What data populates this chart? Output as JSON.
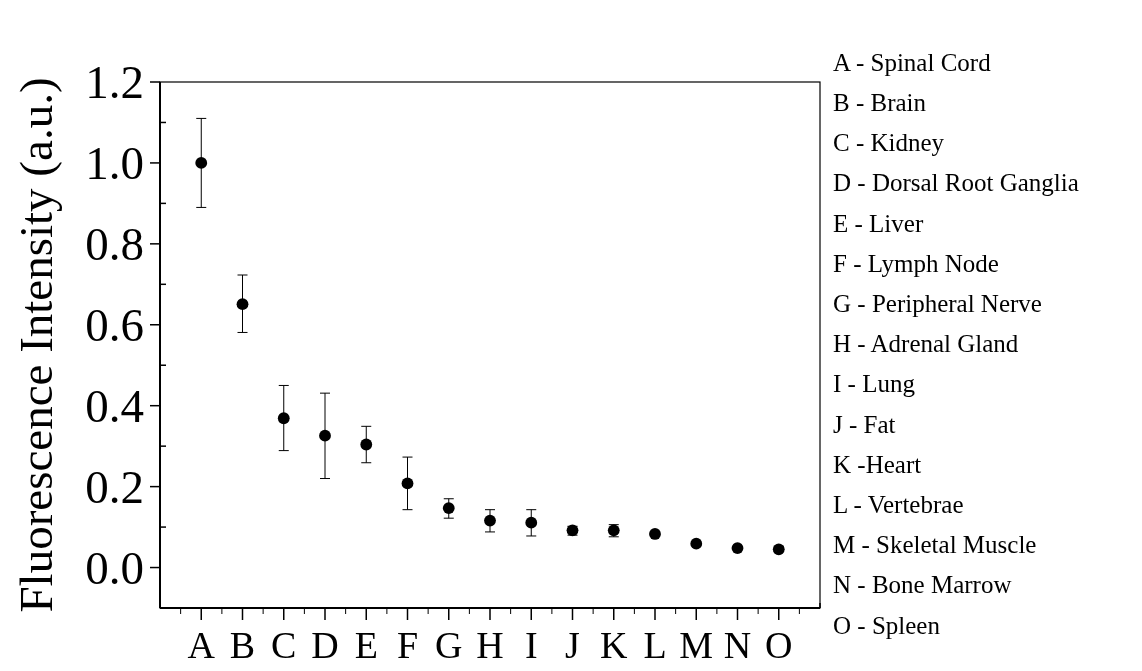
{
  "chart_data": {
    "type": "scatter",
    "ylabel": "Fluorescence Intensity (a.u.)",
    "categories": [
      "A",
      "B",
      "C",
      "D",
      "E",
      "F",
      "G",
      "H",
      "I",
      "J",
      "K",
      "L",
      "M",
      "N",
      "O"
    ],
    "values": [
      1.0,
      0.651,
      0.369,
      0.326,
      0.304,
      0.208,
      0.147,
      0.116,
      0.111,
      0.092,
      0.092,
      0.083,
      0.059,
      0.048,
      0.045
    ],
    "errors": [
      [
        0.89,
        1.11
      ],
      [
        0.581,
        0.723
      ],
      [
        0.289,
        0.45
      ],
      [
        0.22,
        0.431
      ],
      [
        0.259,
        0.349
      ],
      [
        0.143,
        0.273
      ],
      [
        0.122,
        0.17
      ],
      [
        0.088,
        0.143
      ],
      [
        0.078,
        0.143
      ],
      [
        0.08,
        0.102
      ],
      [
        0.076,
        0.106
      ],
      null,
      null,
      null,
      [
        0.04,
        0.052
      ]
    ],
    "color": "#000000",
    "marker": "circle",
    "ylim": [
      -0.1,
      1.2
    ],
    "yticks": [
      {
        "value": -0.1,
        "label": null
      },
      {
        "value": 0,
        "label": "0.0"
      },
      {
        "value": 0.1,
        "label": null
      },
      0.2,
      {
        "value": 0.3,
        "label": null
      },
      0.4,
      {
        "value": 0.5,
        "label": null
      },
      0.6,
      {
        "value": 0.7,
        "label": null
      },
      0.8,
      {
        "value": 0.9,
        "label": null
      },
      {
        "value": 1,
        "label": "1.0"
      },
      {
        "value": 1.1,
        "label": null
      },
      1.2
    ],
    "grid": false,
    "annotations": [
      "A - Spinal Cord",
      "B - Brain",
      "C - Kidney",
      "D - Dorsal Root Ganglia",
      "E - Liver",
      "F - Lymph Node",
      "G - Peripheral Nerve",
      "H - Adrenal Gland",
      "I - Lung",
      "J - Fat",
      "K -Heart",
      "L - Vertebrae",
      "M - Skeletal Muscle",
      "N - Bone Marrow",
      "O - Spleen"
    ]
  }
}
